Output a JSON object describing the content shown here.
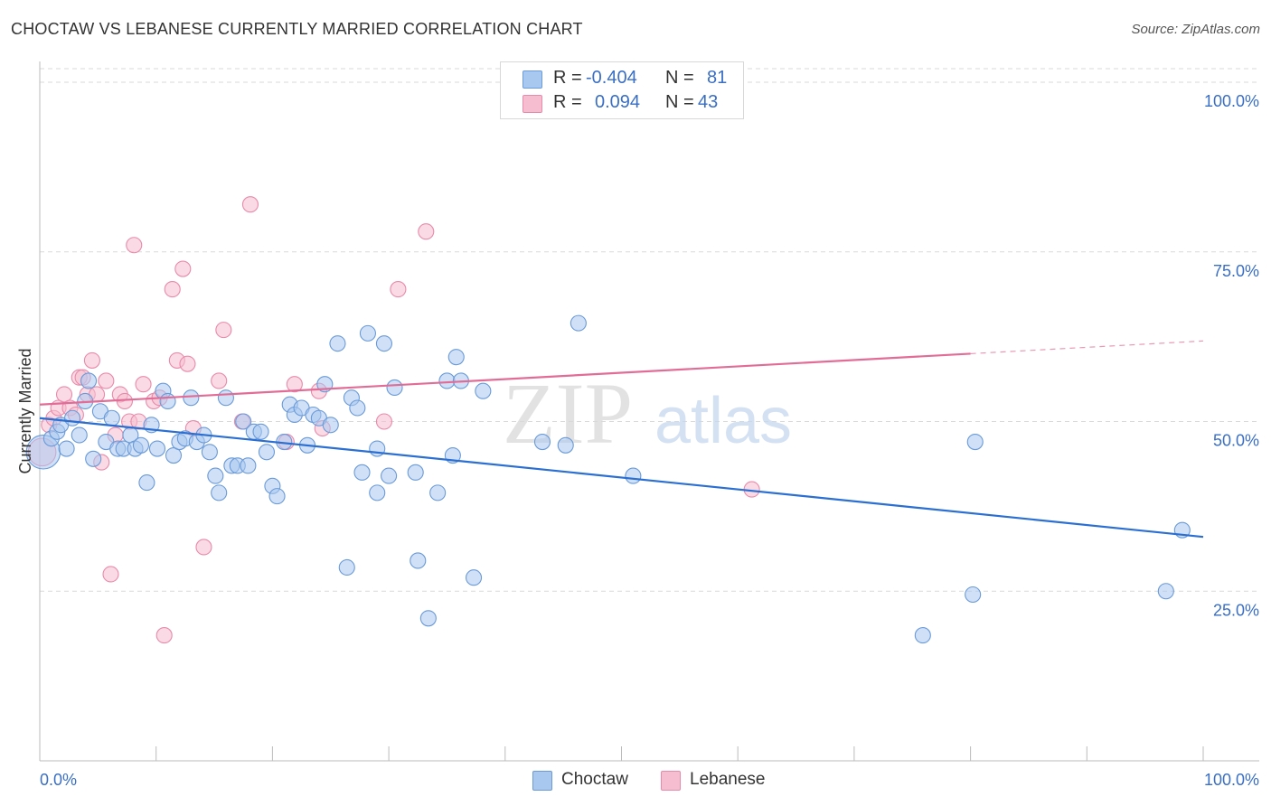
{
  "header": {
    "title": "CHOCTAW VS LEBANESE CURRENTLY MARRIED CORRELATION CHART",
    "source": "Source: ZipAtlas.com"
  },
  "legend": {
    "rows": [
      {
        "r_label": "R =",
        "r_value": "-0.404",
        "n_label": "N =",
        "n_value": "81"
      },
      {
        "r_label": "R =",
        "r_value": "0.094",
        "n_label": "N =",
        "n_value": "43"
      }
    ],
    "bottom": [
      "Choctaw",
      "Lebanese"
    ]
  },
  "colors": {
    "blue_fill": "#a9c8f0",
    "blue_stroke": "#6a9ad8",
    "blue_line": "#2a6fd1",
    "pink_fill": "#f6bdd0",
    "pink_stroke": "#e98aab",
    "pink_line": "#e16d97",
    "axis_text": "#3a6fc4",
    "grid": "#d9d9d9"
  },
  "chart_data": {
    "type": "scatter",
    "title": "CHOCTAW VS LEBANESE CURRENTLY MARRIED CORRELATION CHART",
    "xlabel": "",
    "ylabel": "Currently Married",
    "xlim": [
      0,
      100
    ],
    "ylim": [
      0,
      102
    ],
    "x_tick_labels": [
      "0.0%",
      "100.0%"
    ],
    "y_ticks": [
      25,
      50,
      75,
      100
    ],
    "y_tick_labels": [
      "25.0%",
      "50.0%",
      "75.0%",
      "100.0%"
    ],
    "watermark": {
      "zip": "ZIP",
      "atlas": "atlas"
    },
    "series": [
      {
        "name": "Choctaw",
        "r": -0.404,
        "n": 81,
        "trend": {
          "x0": 0,
          "y0": 50.5,
          "x1": 100,
          "y1": 33.0,
          "x_end": 100
        },
        "points": [
          [
            0.3,
            45.5,
            2.2
          ],
          [
            1.0,
            47.5,
            1.0
          ],
          [
            1.5,
            48.5,
            1.0
          ],
          [
            1.8,
            49.5,
            1.0
          ],
          [
            2.3,
            46.0,
            1.0
          ],
          [
            2.8,
            50.5,
            1.0
          ],
          [
            3.4,
            48.0,
            1.0
          ],
          [
            3.9,
            53.0,
            1.0
          ],
          [
            4.2,
            56.0,
            1.0
          ],
          [
            4.6,
            44.5,
            1.0
          ],
          [
            5.2,
            51.5,
            1.0
          ],
          [
            5.7,
            47.0,
            1.0
          ],
          [
            6.2,
            50.5,
            1.0
          ],
          [
            6.7,
            46.0,
            1.0
          ],
          [
            7.2,
            46.0,
            1.0
          ],
          [
            7.8,
            48.0,
            1.0
          ],
          [
            8.2,
            46.0,
            1.0
          ],
          [
            8.7,
            46.5,
            1.0
          ],
          [
            9.2,
            41.0,
            1.0
          ],
          [
            9.6,
            49.5,
            1.0
          ],
          [
            10.1,
            46.0,
            1.0
          ],
          [
            10.6,
            54.5,
            1.0
          ],
          [
            11.0,
            53.0,
            1.0
          ],
          [
            11.5,
            45.0,
            1.0
          ],
          [
            12.0,
            47.0,
            1.0
          ],
          [
            12.5,
            47.5,
            1.0
          ],
          [
            13.0,
            53.5,
            1.0
          ],
          [
            13.5,
            47.0,
            1.0
          ],
          [
            14.1,
            48.0,
            1.0
          ],
          [
            14.6,
            45.5,
            1.0
          ],
          [
            15.1,
            42.0,
            1.0
          ],
          [
            15.4,
            39.5,
            1.0
          ],
          [
            16.0,
            53.5,
            1.0
          ],
          [
            16.5,
            43.5,
            1.0
          ],
          [
            17.0,
            43.5,
            1.0
          ],
          [
            17.5,
            50.0,
            1.0
          ],
          [
            17.9,
            43.5,
            1.0
          ],
          [
            18.4,
            48.5,
            1.0
          ],
          [
            19.0,
            48.5,
            1.0
          ],
          [
            19.5,
            45.5,
            1.0
          ],
          [
            20.0,
            40.5,
            1.0
          ],
          [
            20.4,
            39.0,
            1.0
          ],
          [
            21.0,
            47.0,
            1.0
          ],
          [
            21.5,
            52.5,
            1.0
          ],
          [
            21.9,
            51.0,
            1.0
          ],
          [
            22.5,
            52.0,
            1.0
          ],
          [
            23.0,
            46.5,
            1.0
          ],
          [
            23.5,
            51.0,
            1.0
          ],
          [
            24.0,
            50.5,
            1.0
          ],
          [
            24.5,
            55.5,
            1.0
          ],
          [
            25.0,
            49.5,
            1.0
          ],
          [
            25.6,
            61.5,
            1.0
          ],
          [
            26.4,
            28.5,
            1.0
          ],
          [
            26.8,
            53.5,
            1.0
          ],
          [
            27.3,
            52.0,
            1.0
          ],
          [
            27.7,
            42.5,
            1.0
          ],
          [
            28.2,
            63.0,
            1.0
          ],
          [
            29.0,
            39.5,
            1.0
          ],
          [
            29.6,
            61.5,
            1.0
          ],
          [
            30.0,
            42.0,
            1.0
          ],
          [
            30.5,
            55.0,
            1.0
          ],
          [
            29.0,
            46.0,
            1.0
          ],
          [
            32.3,
            42.5,
            1.0
          ],
          [
            32.5,
            29.5,
            1.0
          ],
          [
            33.4,
            21.0,
            1.0
          ],
          [
            34.2,
            39.5,
            1.0
          ],
          [
            35.0,
            56.0,
            1.0
          ],
          [
            35.5,
            45.0,
            1.0
          ],
          [
            35.8,
            59.5,
            1.0
          ],
          [
            36.2,
            56.0,
            1.0
          ],
          [
            37.3,
            27.0,
            1.0
          ],
          [
            38.1,
            54.5,
            1.0
          ],
          [
            43.2,
            47.0,
            1.0
          ],
          [
            45.2,
            46.5,
            1.0
          ],
          [
            46.3,
            64.5,
            1.0
          ],
          [
            51.0,
            42.0,
            1.0
          ],
          [
            75.9,
            18.5,
            1.0
          ],
          [
            80.2,
            24.5,
            1.0
          ],
          [
            80.4,
            47.0,
            1.0
          ],
          [
            96.8,
            25.0,
            1.0
          ],
          [
            98.2,
            34.0,
            1.0
          ]
        ]
      },
      {
        "name": "Lebanese",
        "r": 0.094,
        "n": 43,
        "trend": {
          "x0": 0,
          "y0": 52.5,
          "x1": 80,
          "y1": 60.0,
          "x_end": 100
        },
        "points": [
          [
            0.2,
            45.5,
            1.8
          ],
          [
            0.8,
            49.5,
            1.0
          ],
          [
            1.2,
            50.5,
            1.0
          ],
          [
            1.6,
            52.0,
            1.0
          ],
          [
            2.1,
            54.0,
            1.0
          ],
          [
            2.6,
            52.0,
            1.0
          ],
          [
            3.1,
            51.0,
            1.0
          ],
          [
            3.4,
            56.5,
            1.0
          ],
          [
            3.7,
            56.5,
            1.0
          ],
          [
            4.1,
            54.0,
            1.0
          ],
          [
            4.5,
            59.0,
            1.0
          ],
          [
            4.9,
            54.0,
            1.0
          ],
          [
            5.3,
            44.0,
            1.0
          ],
          [
            5.7,
            56.0,
            1.0
          ],
          [
            6.1,
            27.5,
            1.0
          ],
          [
            6.5,
            48.0,
            1.0
          ],
          [
            6.9,
            54.0,
            1.0
          ],
          [
            7.3,
            53.0,
            1.0
          ],
          [
            7.7,
            50.0,
            1.0
          ],
          [
            8.1,
            76.0,
            1.0
          ],
          [
            8.5,
            50.0,
            1.0
          ],
          [
            8.9,
            55.5,
            1.0
          ],
          [
            9.8,
            53.0,
            1.0
          ],
          [
            10.3,
            53.5,
            1.0
          ],
          [
            10.7,
            18.5,
            1.0
          ],
          [
            11.4,
            69.5,
            1.0
          ],
          [
            11.8,
            59.0,
            1.0
          ],
          [
            12.3,
            72.5,
            1.0
          ],
          [
            12.7,
            58.5,
            1.0
          ],
          [
            13.2,
            49.0,
            1.0
          ],
          [
            14.1,
            31.5,
            1.0
          ],
          [
            15.4,
            56.0,
            1.0
          ],
          [
            15.8,
            63.5,
            1.0
          ],
          [
            17.4,
            50.0,
            1.0
          ],
          [
            18.1,
            82.0,
            1.0
          ],
          [
            21.2,
            47.0,
            1.0
          ],
          [
            21.9,
            55.5,
            1.0
          ],
          [
            24.0,
            54.5,
            1.0
          ],
          [
            24.3,
            49.0,
            1.0
          ],
          [
            29.6,
            50.0,
            1.0
          ],
          [
            30.8,
            69.5,
            1.0
          ],
          [
            33.2,
            78.0,
            1.0
          ],
          [
            61.2,
            40.0,
            1.0
          ]
        ]
      }
    ]
  }
}
